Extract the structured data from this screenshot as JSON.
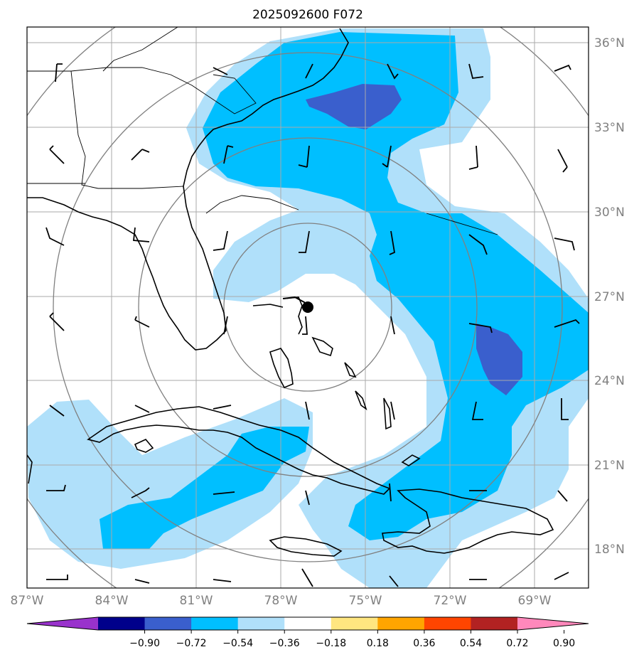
{
  "title": "2025092600 F072",
  "map": {
    "lat_labels": [
      "36°N",
      "33°N",
      "30°N",
      "27°N",
      "24°N",
      "21°N",
      "18°N"
    ],
    "lon_labels": [
      "87°W",
      "84°W",
      "81°W",
      "78°W",
      "75°W",
      "72°W",
      "69°W"
    ],
    "storm_center": {
      "lon": -77.0,
      "lat": 26.6
    }
  },
  "colorbar": {
    "ticks": [
      "−0.90",
      "−0.72",
      "−0.54",
      "−0.36",
      "−0.18",
      "0.18",
      "0.36",
      "0.54",
      "0.72",
      "0.90"
    ],
    "colors": [
      "#9932cc",
      "#00008b",
      "#3a5fcd",
      "#00bfff",
      "#b0e0fa",
      "#ffffff",
      "#ffe680",
      "#ffa500",
      "#ff4500",
      "#b22222",
      "#ff88bb"
    ]
  }
}
